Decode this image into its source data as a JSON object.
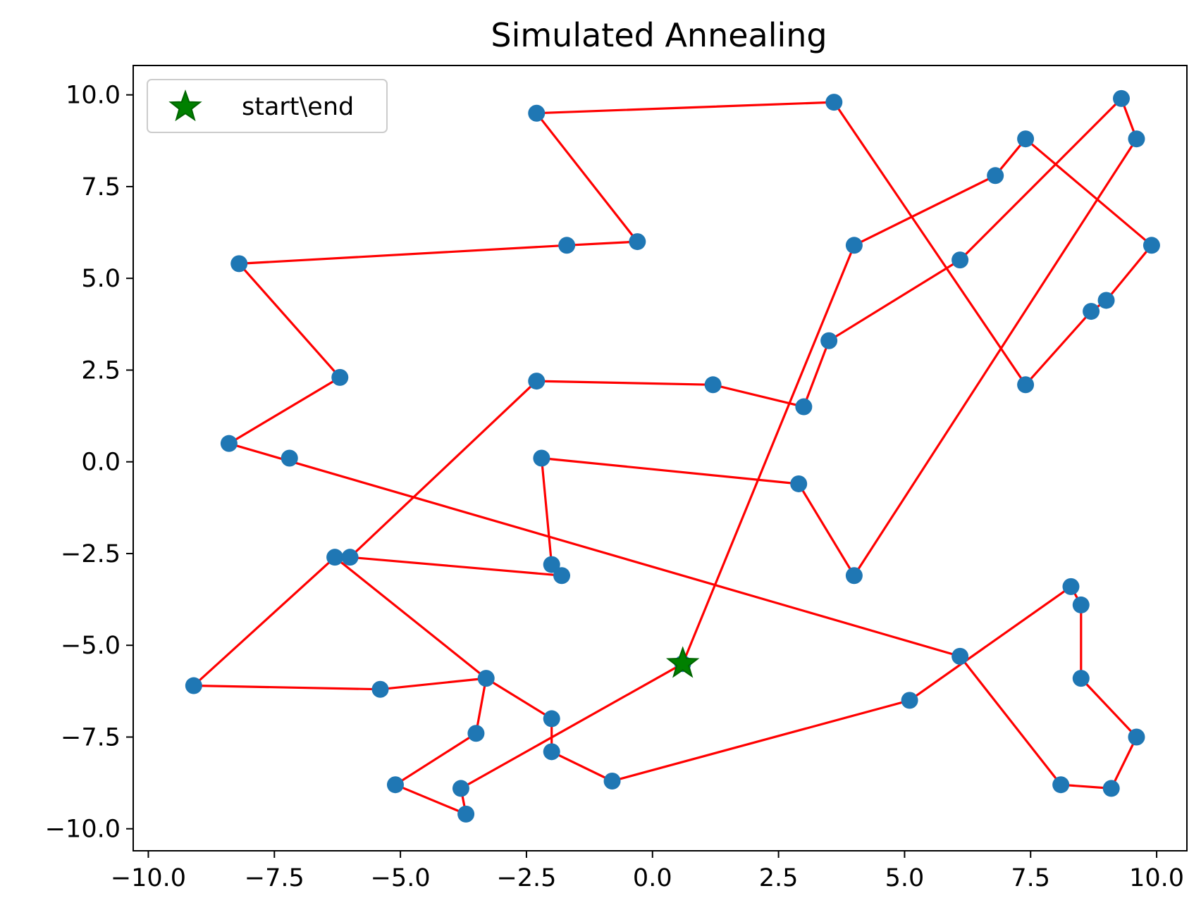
{
  "chart_data": {
    "type": "scatter",
    "title": "Simulated Annealing",
    "xlabel": "",
    "ylabel": "",
    "xlim": [
      -10.3,
      10.6
    ],
    "ylim": [
      -10.6,
      10.8
    ],
    "xticks": [
      -10.0,
      -7.5,
      -5.0,
      -2.5,
      0.0,
      2.5,
      5.0,
      7.5,
      10.0
    ],
    "yticks": [
      -10.0,
      -7.5,
      -5.0,
      -2.5,
      0.0,
      2.5,
      5.0,
      7.5,
      10.0
    ],
    "xtick_labels": [
      "−10.0",
      "−7.5",
      "−5.0",
      "−2.5",
      "0.0",
      "2.5",
      "5.0",
      "7.5",
      "10.0"
    ],
    "ytick_labels": [
      "−10.0",
      "−7.5",
      "−5.0",
      "−2.5",
      "0.0",
      "2.5",
      "5.0",
      "7.5",
      "10.0"
    ],
    "grid": false,
    "legend": {
      "placement": "top-left",
      "entries": [
        "start\\end"
      ]
    },
    "colors": {
      "points": "#1f77b4",
      "path": "#ff0000",
      "start": "#008000"
    },
    "start_point": [
      0.6,
      -5.5
    ],
    "path": [
      [
        0.6,
        -5.5
      ],
      [
        4.0,
        5.9
      ],
      [
        6.8,
        7.8
      ],
      [
        7.4,
        8.8
      ],
      [
        9.9,
        5.9
      ],
      [
        9.0,
        4.4
      ],
      [
        8.7,
        4.1
      ],
      [
        7.4,
        2.1
      ],
      [
        3.6,
        9.8
      ],
      [
        -2.3,
        9.5
      ],
      [
        -0.3,
        6.0
      ],
      [
        -1.7,
        5.9
      ],
      [
        -8.2,
        5.4
      ],
      [
        -6.2,
        2.3
      ],
      [
        -8.4,
        0.5
      ],
      [
        6.1,
        -5.3
      ],
      [
        8.1,
        -8.8
      ],
      [
        9.1,
        -8.9
      ],
      [
        9.6,
        -7.5
      ],
      [
        8.5,
        -5.9
      ],
      [
        8.5,
        -3.9
      ],
      [
        8.3,
        -3.4
      ],
      [
        5.1,
        -6.5
      ],
      [
        -0.8,
        -8.7
      ],
      [
        -2.0,
        -7.9
      ],
      [
        -2.0,
        -7.0
      ],
      [
        -3.3,
        -5.9
      ],
      [
        -6.3,
        -2.6
      ],
      [
        -9.1,
        -6.1
      ],
      [
        -5.4,
        -6.2
      ],
      [
        -3.3,
        -5.9
      ],
      [
        -3.5,
        -7.4
      ],
      [
        -5.1,
        -8.8
      ],
      [
        -3.7,
        -9.6
      ],
      [
        -3.8,
        -8.9
      ],
      [
        0.6,
        -5.5
      ]
    ],
    "path2": [
      [
        -6.0,
        -2.6
      ],
      [
        -1.8,
        -3.1
      ],
      [
        -2.0,
        -2.8
      ],
      [
        -2.2,
        0.1
      ],
      [
        2.9,
        -0.6
      ],
      [
        4.0,
        -3.1
      ],
      [
        9.6,
        8.8
      ],
      [
        9.3,
        9.9
      ],
      [
        6.1,
        5.5
      ],
      [
        3.5,
        3.3
      ],
      [
        3.0,
        1.5
      ],
      [
        1.2,
        2.1
      ],
      [
        -2.3,
        2.2
      ],
      [
        -6.0,
        -2.6
      ]
    ],
    "points": [
      [
        0.6,
        -5.5
      ],
      [
        4.0,
        5.9
      ],
      [
        6.8,
        7.8
      ],
      [
        7.4,
        8.8
      ],
      [
        9.9,
        5.9
      ],
      [
        9.0,
        4.4
      ],
      [
        8.7,
        4.1
      ],
      [
        7.4,
        2.1
      ],
      [
        3.6,
        9.8
      ],
      [
        -2.3,
        9.5
      ],
      [
        -0.3,
        6.0
      ],
      [
        -1.7,
        5.9
      ],
      [
        -8.2,
        5.4
      ],
      [
        -6.2,
        2.3
      ],
      [
        -8.4,
        0.5
      ],
      [
        -7.2,
        0.1
      ],
      [
        6.1,
        -5.3
      ],
      [
        8.1,
        -8.8
      ],
      [
        9.1,
        -8.9
      ],
      [
        9.6,
        -7.5
      ],
      [
        8.5,
        -5.9
      ],
      [
        8.5,
        -3.9
      ],
      [
        8.3,
        -3.4
      ],
      [
        5.1,
        -6.5
      ],
      [
        -0.8,
        -8.7
      ],
      [
        -2.0,
        -7.9
      ],
      [
        -2.0,
        -7.0
      ],
      [
        -3.3,
        -5.9
      ],
      [
        -6.3,
        -2.6
      ],
      [
        -6.0,
        -2.6
      ],
      [
        -9.1,
        -6.1
      ],
      [
        -5.4,
        -6.2
      ],
      [
        -3.5,
        -7.4
      ],
      [
        -5.1,
        -8.8
      ],
      [
        -3.7,
        -9.6
      ],
      [
        -3.8,
        -8.9
      ],
      [
        -1.8,
        -3.1
      ],
      [
        -2.0,
        -2.8
      ],
      [
        -2.2,
        0.1
      ],
      [
        2.9,
        -0.6
      ],
      [
        4.0,
        -3.1
      ],
      [
        9.6,
        8.8
      ],
      [
        9.3,
        9.9
      ],
      [
        6.1,
        5.5
      ],
      [
        3.5,
        3.3
      ],
      [
        3.0,
        1.5
      ],
      [
        1.2,
        2.1
      ],
      [
        -2.3,
        2.2
      ]
    ]
  }
}
